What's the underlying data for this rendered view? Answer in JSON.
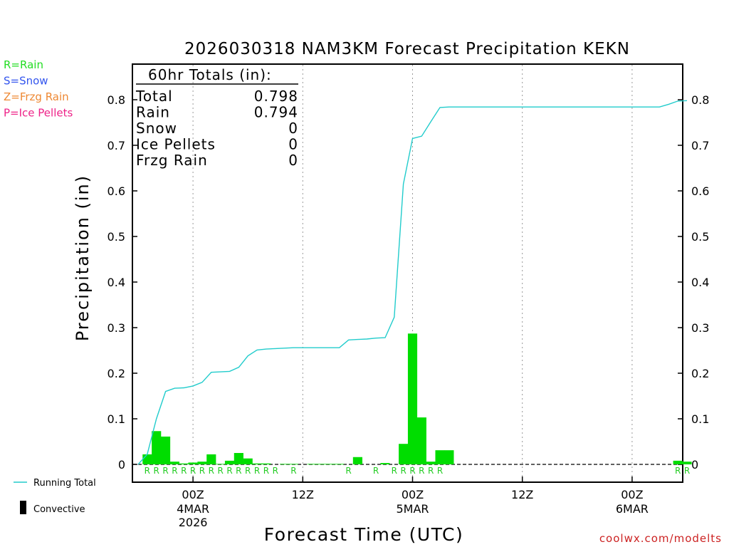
{
  "chart_data": {
    "type": "bar+line",
    "title": "2026030318 NAM3KM Forecast Precipitation KEKN",
    "xlabel": "Forecast Time (UTC)",
    "ylabel": "Precipitation (in)",
    "ylim": [
      0,
      0.88
    ],
    "yticks": [
      0,
      0.1,
      0.2,
      0.3,
      0.4,
      0.5,
      0.6,
      0.7,
      0.8
    ],
    "ytick_labels": [
      "0",
      "0.1",
      "0.2",
      "0.3",
      "0.4",
      "0.5",
      "0.6",
      "0.7",
      "0.8"
    ],
    "x_unit": "forecast hour",
    "xlim": [
      0,
      60
    ],
    "xticks": [
      {
        "hour": 6,
        "label1": "00Z",
        "label2": "4MAR",
        "label3": "2026"
      },
      {
        "hour": 18,
        "label1": "12Z",
        "label2": "",
        "label3": ""
      },
      {
        "hour": 30,
        "label1": "00Z",
        "label2": "5MAR",
        "label3": ""
      },
      {
        "hour": 42,
        "label1": "12Z",
        "label2": "",
        "label3": ""
      },
      {
        "hour": 54,
        "label1": "00Z",
        "label2": "6MAR",
        "label3": ""
      }
    ],
    "hourly_precip": [
      {
        "hour": 1,
        "value": 0.022
      },
      {
        "hour": 2,
        "value": 0.073
      },
      {
        "hour": 3,
        "value": 0.061
      },
      {
        "hour": 4,
        "value": 0.006
      },
      {
        "hour": 5,
        "value": 0.002
      },
      {
        "hour": 6,
        "value": 0.004
      },
      {
        "hour": 7,
        "value": 0.006
      },
      {
        "hour": 8,
        "value": 0.022
      },
      {
        "hour": 9,
        "value": 0.001
      },
      {
        "hour": 10,
        "value": 0.008
      },
      {
        "hour": 11,
        "value": 0.025
      },
      {
        "hour": 12,
        "value": 0.013
      },
      {
        "hour": 13,
        "value": 0.002
      },
      {
        "hour": 14,
        "value": 0.002
      },
      {
        "hour": 16,
        "value": 0.001
      },
      {
        "hour": 17,
        "value": 0.001
      },
      {
        "hour": 19,
        "value": 0.001
      },
      {
        "hour": 20,
        "value": 0.001
      },
      {
        "hour": 21,
        "value": 0.001
      },
      {
        "hour": 22,
        "value": 0.001
      },
      {
        "hour": 24,
        "value": 0.016
      },
      {
        "hour": 27,
        "value": 0.003
      },
      {
        "hour": 29,
        "value": 0.045
      },
      {
        "hour": 30,
        "value": 0.287
      },
      {
        "hour": 31,
        "value": 0.103
      },
      {
        "hour": 32,
        "value": 0.006
      },
      {
        "hour": 33,
        "value": 0.031
      },
      {
        "hour": 34,
        "value": 0.031
      },
      {
        "hour": 59,
        "value": 0.008
      },
      {
        "hour": 60,
        "value": 0.006
      }
    ],
    "running_total": [
      [
        0,
        0
      ],
      [
        1,
        0.022
      ],
      [
        2,
        0.1
      ],
      [
        3,
        0.16
      ],
      [
        4,
        0.167
      ],
      [
        5,
        0.168
      ],
      [
        6,
        0.172
      ],
      [
        7,
        0.18
      ],
      [
        8,
        0.202
      ],
      [
        9,
        0.203
      ],
      [
        10,
        0.204
      ],
      [
        11,
        0.213
      ],
      [
        12,
        0.238
      ],
      [
        13,
        0.251
      ],
      [
        14,
        0.253
      ],
      [
        15,
        0.254
      ],
      [
        16,
        0.255
      ],
      [
        17,
        0.256
      ],
      [
        18,
        0.256
      ],
      [
        19,
        0.256
      ],
      [
        20,
        0.256
      ],
      [
        21,
        0.256
      ],
      [
        22,
        0.256
      ],
      [
        23,
        0.273
      ],
      [
        24,
        0.274
      ],
      [
        25,
        0.275
      ],
      [
        26,
        0.277
      ],
      [
        27,
        0.278
      ],
      [
        28,
        0.323
      ],
      [
        29,
        0.615
      ],
      [
        30,
        0.715
      ],
      [
        31,
        0.72
      ],
      [
        32,
        0.752
      ],
      [
        33,
        0.783
      ],
      [
        34,
        0.784
      ],
      [
        35,
        0.784
      ],
      [
        40,
        0.784
      ],
      [
        45,
        0.784
      ],
      [
        50,
        0.784
      ],
      [
        55,
        0.784
      ],
      [
        57,
        0.784
      ],
      [
        58,
        0.79
      ],
      [
        59,
        0.797
      ],
      [
        60,
        0.798
      ]
    ],
    "ptype_markers": [
      {
        "hour": 1,
        "type": "R"
      },
      {
        "hour": 2,
        "type": "R"
      },
      {
        "hour": 3,
        "type": "R"
      },
      {
        "hour": 4,
        "type": "R"
      },
      {
        "hour": 5,
        "type": "R"
      },
      {
        "hour": 6,
        "type": "R"
      },
      {
        "hour": 7,
        "type": "R"
      },
      {
        "hour": 8,
        "type": "R"
      },
      {
        "hour": 9,
        "type": "R"
      },
      {
        "hour": 10,
        "type": "R"
      },
      {
        "hour": 11,
        "type": "R"
      },
      {
        "hour": 12,
        "type": "R"
      },
      {
        "hour": 13,
        "type": "R"
      },
      {
        "hour": 14,
        "type": "R"
      },
      {
        "hour": 15,
        "type": "R"
      },
      {
        "hour": 17,
        "type": "R"
      },
      {
        "hour": 23,
        "type": "R"
      },
      {
        "hour": 26,
        "type": "R"
      },
      {
        "hour": 28,
        "type": "R"
      },
      {
        "hour": 29,
        "type": "R"
      },
      {
        "hour": 30,
        "type": "R"
      },
      {
        "hour": 31,
        "type": "R"
      },
      {
        "hour": 32,
        "type": "R"
      },
      {
        "hour": 33,
        "type": "R"
      },
      {
        "hour": 59,
        "type": "R"
      },
      {
        "hour": 60,
        "type": "R"
      }
    ],
    "totals_box": {
      "header": "60hr Totals (in):",
      "rows": [
        {
          "label": "Total",
          "value": "0.798"
        },
        {
          "label": "Rain",
          "value": "0.794"
        },
        {
          "label": "Snow",
          "value": "0"
        },
        {
          "label": "Ice Pellets",
          "value": "0"
        },
        {
          "label": "Frzg Rain",
          "value": "0"
        }
      ]
    },
    "ptype_legend": [
      {
        "text": "R=Rain",
        "color": "#22dd22"
      },
      {
        "text": "S=Snow",
        "color": "#3355ee"
      },
      {
        "text": "Z=Frzg Rain",
        "color": "#ee8833"
      },
      {
        "text": "P=Ice Pellets",
        "color": "#ee2288"
      }
    ],
    "series_legend": {
      "running_total": "Running Total",
      "convective": "Convective"
    },
    "colors": {
      "bar": "#00dd00",
      "line": "#22cccc",
      "marker": "#22cc22",
      "convective": "#000000"
    },
    "credit": "coolwx.com/modelts"
  }
}
